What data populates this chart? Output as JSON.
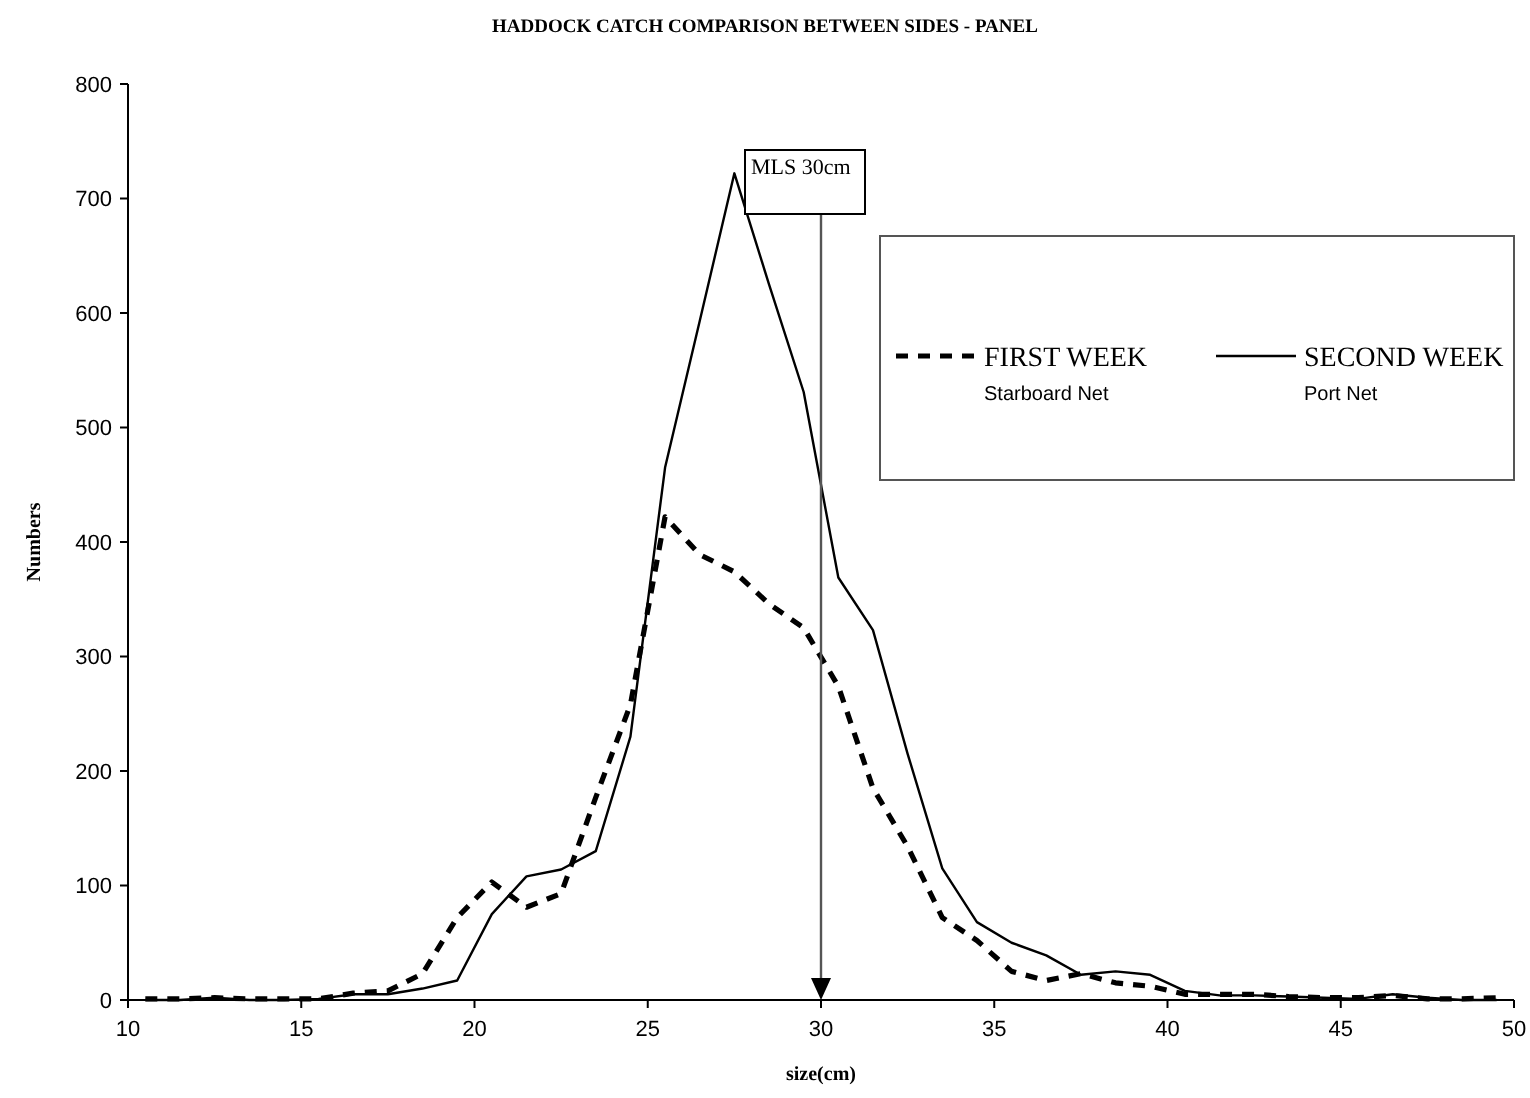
{
  "chart_data": {
    "type": "line",
    "title": "HADDOCK CATCH COMPARISON BETWEEN SIDES - PANEL",
    "xlabel": "size(cm)",
    "ylabel": "Numbers",
    "x": [
      10.5,
      11.5,
      12.5,
      13.5,
      14.5,
      15.5,
      16.5,
      17.5,
      18.5,
      19.5,
      20.5,
      21.5,
      22.5,
      23.5,
      24.5,
      25.5,
      26.5,
      27.5,
      28.5,
      29.5,
      30.5,
      31.5,
      32.5,
      33.5,
      34.5,
      35.5,
      36.5,
      37.5,
      38.5,
      39.5,
      40.5,
      41.5,
      42.5,
      43.5,
      44.5,
      45.5,
      46.5,
      47.5,
      48.5,
      49.5
    ],
    "series": [
      {
        "name": "FIRST WEEK",
        "color": "#000000",
        "line_style": "dashed",
        "values": [
          1,
          1,
          2,
          1,
          1,
          1,
          6,
          8,
          23,
          72,
          103,
          81,
          93,
          177,
          258,
          422,
          389,
          374,
          346,
          325,
          274,
          185,
          134,
          72,
          52,
          25,
          17,
          23,
          15,
          12,
          5,
          5,
          5,
          3,
          2,
          2,
          4,
          1,
          1,
          2
        ]
      },
      {
        "name": "SECOND WEEK",
        "color": "#000000",
        "line_style": "solid",
        "values": [
          0,
          0,
          2,
          0,
          0,
          1,
          5,
          5,
          10,
          17,
          75,
          108,
          114,
          130,
          230,
          465,
          593,
          722,
          625,
          531,
          369,
          323,
          215,
          115,
          68,
          50,
          39,
          22,
          25,
          22,
          8,
          4,
          4,
          3,
          2,
          1,
          5,
          2,
          0,
          0
        ]
      }
    ],
    "annotations": [
      "Starboard Net",
      "Port Net"
    ],
    "ref_lines": [
      {
        "axis": "x",
        "value": 30,
        "label": "MLS 30cm",
        "color": "#555555"
      }
    ],
    "xlim": [
      10,
      50
    ],
    "xticks": [
      10,
      15,
      20,
      25,
      30,
      35,
      40,
      45,
      50
    ],
    "ylim": [
      0,
      800
    ],
    "yticks": [
      0,
      100,
      200,
      300,
      400,
      500,
      600,
      700,
      800
    ],
    "grid": false,
    "legend": "top right",
    "marker": "none"
  }
}
